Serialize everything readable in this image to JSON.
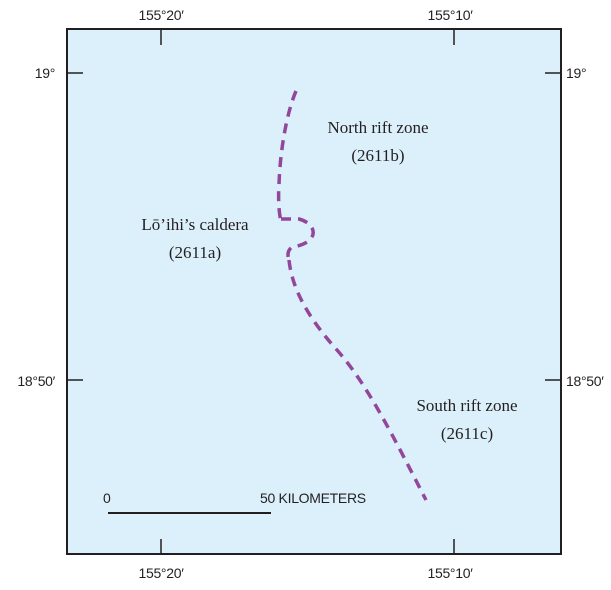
{
  "map": {
    "longitude_ticks": {
      "west": "155°20′",
      "east": "155°10′"
    },
    "latitude_ticks": {
      "north": "19°",
      "south": "18°50′"
    },
    "features": {
      "caldera": {
        "name": "Lō’ihi’s caldera",
        "id": "(2611a)"
      },
      "north_rift": {
        "name": "North rift zone",
        "id": "(2611b)"
      },
      "south_rift": {
        "name": "South rift zone",
        "id": "(2611c)"
      }
    },
    "scale_bar": {
      "start_label": "0",
      "end_label": "50 KILOMETERS"
    },
    "colors": {
      "water": "#dcf0fb",
      "rift_line": "#93479b",
      "frame": "#231f20"
    }
  }
}
